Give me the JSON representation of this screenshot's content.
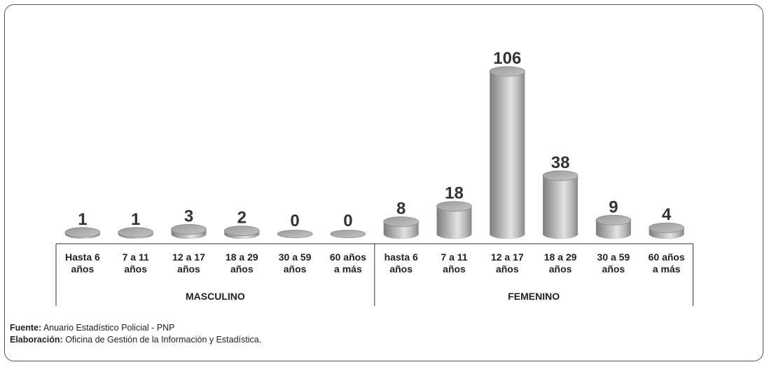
{
  "chart_data": {
    "type": "bar",
    "bar_style": "3d-cylinder",
    "groups": [
      {
        "label": "MASCULINO",
        "categories": [
          [
            "Hasta 6",
            "años"
          ],
          [
            "7 a 11",
            "años"
          ],
          [
            "12 a 17",
            "años"
          ],
          [
            "18 a 29",
            "años"
          ],
          [
            "30 a 59",
            "años"
          ],
          [
            "60 años",
            "a más"
          ]
        ],
        "values": [
          1,
          1,
          3,
          2,
          0,
          0
        ]
      },
      {
        "label": "FEMENINO",
        "categories": [
          [
            "hasta 6",
            "años"
          ],
          [
            "7 a 11",
            "años"
          ],
          [
            "12 a 17",
            "años"
          ],
          [
            "18 a 29",
            "años"
          ],
          [
            "30 a 59",
            "años"
          ],
          [
            "60 años",
            "a más"
          ]
        ],
        "values": [
          8,
          18,
          106,
          38,
          9,
          4
        ]
      }
    ],
    "ylim": [
      0,
      106
    ],
    "grid": false,
    "bar_color": "#a9a9a9"
  },
  "notes": {
    "source_label": "Fuente:",
    "source_text": "Anuario Estadístico Policial - PNP",
    "credit_label": "Elaboración:",
    "credit_text": "Oficina de Gestión de la Información y Estadística."
  }
}
